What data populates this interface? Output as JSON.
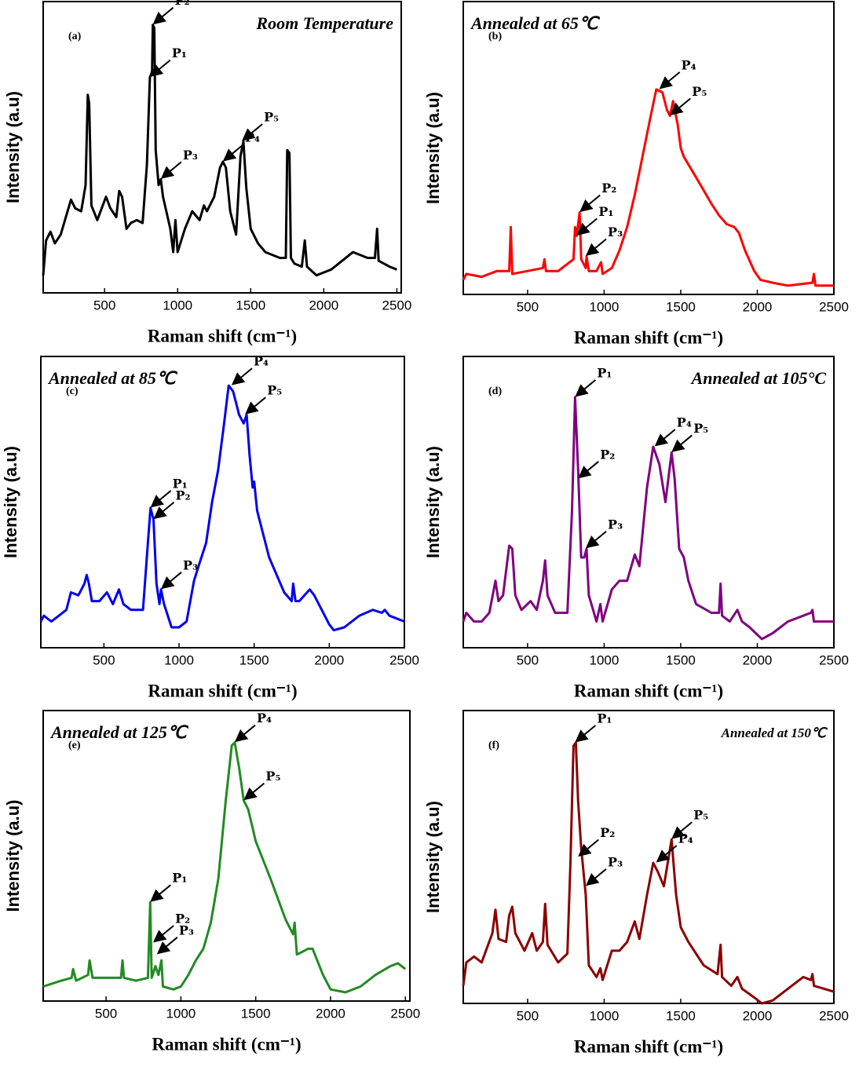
{
  "chart_data": [
    {
      "type": "line",
      "title": "Room Temperature",
      "panel_label": "(a)",
      "xlabel": "Raman shift (cm⁻¹)",
      "ylabel": "Intensity (a.u)",
      "xlim": [
        80,
        2530
      ],
      "ylim": [
        0,
        100
      ],
      "xticks": [
        500,
        1000,
        1500,
        2000,
        2500
      ],
      "x": [
        80,
        100,
        130,
        160,
        200,
        270,
        300,
        340,
        370,
        385,
        395,
        410,
        450,
        510,
        540,
        580,
        600,
        620,
        650,
        680,
        720,
        760,
        790,
        810,
        825,
        830,
        840,
        850,
        870,
        885,
        900,
        950,
        970,
        985,
        1000,
        1050,
        1100,
        1150,
        1180,
        1200,
        1250,
        1290,
        1310,
        1330,
        1360,
        1400,
        1430,
        1450,
        1470,
        1500,
        1550,
        1600,
        1700,
        1740,
        1750,
        1765,
        1775,
        1800,
        1850,
        1870,
        1885,
        1950,
        2000,
        2050,
        2100,
        2200,
        2300,
        2350,
        2365,
        2375,
        2450,
        2500
      ],
      "series": [
        {
          "color": "#000000",
          "values": [
            6,
            18,
            21,
            17,
            20,
            32,
            29,
            28,
            37,
            68,
            65,
            30,
            25,
            33,
            29,
            26,
            35,
            33,
            22,
            24,
            25,
            24,
            44,
            74,
            76,
            92,
            91,
            49,
            37,
            39,
            33,
            22,
            14,
            25,
            14,
            22,
            28,
            25,
            30,
            28,
            33,
            43,
            45,
            43,
            28,
            20,
            47,
            52,
            36,
            22,
            17,
            14,
            12,
            12,
            49,
            48,
            12,
            10,
            9,
            18,
            9,
            6,
            7,
            8,
            10,
            14,
            12,
            12,
            22,
            11,
            9,
            8
          ]
        }
      ],
      "annotations": [
        {
          "text": "P₁",
          "x": 810,
          "y": 74
        },
        {
          "text": "P₂",
          "x": 830,
          "y": 92
        },
        {
          "text": "P₃",
          "x": 885,
          "y": 39
        },
        {
          "text": "P₄",
          "x": 1310,
          "y": 45
        },
        {
          "text": "P₅",
          "x": 1440,
          "y": 52
        }
      ]
    },
    {
      "type": "line",
      "title": "Annealed at 65℃",
      "panel_label": "(b)",
      "xlabel": "Raman shift (cm⁻¹)",
      "ylabel": "Intensity (a.u)",
      "xlim": [
        80,
        2500
      ],
      "ylim": [
        0,
        100
      ],
      "xticks": [
        500,
        1000,
        1500,
        2000,
        2500
      ],
      "x": [
        80,
        100,
        200,
        300,
        380,
        390,
        400,
        500,
        600,
        610,
        620,
        700,
        800,
        810,
        820,
        830,
        840,
        850,
        880,
        885,
        900,
        950,
        980,
        990,
        1050,
        1100,
        1150,
        1200,
        1250,
        1300,
        1340,
        1380,
        1410,
        1430,
        1450,
        1480,
        1500,
        1520,
        1600,
        1700,
        1750,
        1800,
        1850,
        1880,
        1920,
        1980,
        2020,
        2100,
        2200,
        2360,
        2370,
        2380,
        2500
      ],
      "series": [
        {
          "color": "#ff0000",
          "values": [
            5,
            7,
            6,
            8,
            8,
            23,
            7,
            8,
            9,
            12,
            8,
            8,
            12,
            23,
            20,
            24,
            28,
            12,
            9,
            13,
            8,
            8,
            11,
            7,
            9,
            15,
            23,
            34,
            47,
            60,
            70,
            69,
            63,
            61,
            66,
            58,
            50,
            47,
            40,
            31,
            27,
            24,
            23,
            21,
            15,
            8,
            5,
            4,
            3,
            4,
            7,
            3,
            3
          ]
        }
      ],
      "annotations": [
        {
          "text": "P₁",
          "x": 820,
          "y": 20
        },
        {
          "text": "P₂",
          "x": 840,
          "y": 28
        },
        {
          "text": "P₃",
          "x": 880,
          "y": 13
        },
        {
          "text": "P₄",
          "x": 1360,
          "y": 70
        },
        {
          "text": "P₅",
          "x": 1430,
          "y": 61
        }
      ]
    },
    {
      "type": "line",
      "title": "Annealed at 85℃",
      "panel_label": "(c)",
      "xlabel": "Raman shift (cm⁻¹)",
      "ylabel": "Intensity (a.u)",
      "xlim": [
        80,
        2500
      ],
      "ylim": [
        0,
        100
      ],
      "xticks": [
        500,
        1000,
        1500,
        2000,
        2500
      ],
      "x": [
        80,
        100,
        150,
        250,
        280,
        330,
        370,
        385,
        400,
        420,
        470,
        520,
        560,
        600,
        630,
        680,
        760,
        790,
        810,
        830,
        850,
        870,
        880,
        900,
        950,
        1000,
        1050,
        1100,
        1130,
        1180,
        1220,
        1260,
        1300,
        1330,
        1360,
        1400,
        1430,
        1450,
        1470,
        1490,
        1500,
        1520,
        1600,
        1700,
        1750,
        1760,
        1775,
        1800,
        1870,
        1900,
        2000,
        2030,
        2100,
        2200,
        2290,
        2350,
        2370,
        2400,
        2500
      ],
      "series": [
        {
          "color": "#0000ee",
          "values": [
            9,
            11,
            9,
            13,
            19,
            18,
            22,
            25,
            22,
            16,
            16,
            19,
            15,
            20,
            15,
            13,
            13,
            34,
            48,
            44,
            22,
            15,
            20,
            15,
            7,
            7,
            9,
            23,
            28,
            36,
            50,
            61,
            77,
            90,
            88,
            80,
            77,
            80,
            66,
            55,
            57,
            47,
            31,
            19,
            16,
            22,
            16,
            16,
            20,
            18,
            8,
            6,
            7,
            11,
            13,
            12,
            13,
            11,
            9
          ]
        }
      ],
      "annotations": [
        {
          "text": "P₁",
          "x": 810,
          "y": 48
        },
        {
          "text": "P₂",
          "x": 830,
          "y": 44
        },
        {
          "text": "P₃",
          "x": 880,
          "y": 20
        },
        {
          "text": "P₄",
          "x": 1350,
          "y": 90
        },
        {
          "text": "P₅",
          "x": 1440,
          "y": 80
        }
      ]
    },
    {
      "type": "line",
      "title": "Annealed at 105°C",
      "panel_label": "(d)",
      "xlabel": "Raman shift (cm⁻¹)",
      "ylabel": "Intensity (a.u)",
      "xlim": [
        80,
        2500
      ],
      "ylim": [
        0,
        100
      ],
      "xticks": [
        500,
        1000,
        1500,
        2000,
        2500
      ],
      "x": [
        80,
        100,
        150,
        200,
        250,
        290,
        310,
        340,
        380,
        400,
        420,
        460,
        520,
        560,
        600,
        615,
        630,
        680,
        760,
        790,
        810,
        830,
        850,
        870,
        885,
        900,
        950,
        975,
        990,
        1050,
        1100,
        1150,
        1200,
        1230,
        1280,
        1320,
        1360,
        1400,
        1440,
        1460,
        1490,
        1520,
        1550,
        1600,
        1700,
        1750,
        1760,
        1770,
        1820,
        1870,
        1900,
        1950,
        2030,
        2100,
        2200,
        2300,
        2350,
        2360,
        2370,
        2500
      ],
      "series": [
        {
          "color": "#800080",
          "values": [
            9,
            12,
            9,
            9,
            12,
            23,
            16,
            18,
            35,
            34,
            18,
            13,
            16,
            13,
            23,
            30,
            18,
            12,
            12,
            47,
            86,
            61,
            31,
            31,
            34,
            18,
            9,
            15,
            9,
            20,
            23,
            23,
            32,
            28,
            55,
            69,
            63,
            50,
            67,
            58,
            34,
            31,
            23,
            15,
            12,
            12,
            22,
            11,
            9,
            13,
            9,
            7,
            3,
            5,
            9,
            11,
            12,
            13,
            9,
            9
          ]
        }
      ],
      "annotations": [
        {
          "text": "P₁",
          "x": 810,
          "y": 86
        },
        {
          "text": "P₂",
          "x": 830,
          "y": 58
        },
        {
          "text": "P₃",
          "x": 880,
          "y": 34
        },
        {
          "text": "P₄",
          "x": 1330,
          "y": 69
        },
        {
          "text": "P₅",
          "x": 1440,
          "y": 67
        }
      ]
    },
    {
      "type": "line",
      "title": "Annealed at 125℃",
      "panel_label": "(e)",
      "xlabel": "Raman shift (cm⁻¹)",
      "ylabel": "Intensity (a.u)",
      "xlim": [
        80,
        2530
      ],
      "ylim": [
        0,
        100
      ],
      "xticks": [
        500,
        1000,
        1500,
        2000,
        2500
      ],
      "x": [
        80,
        200,
        270,
        280,
        300,
        380,
        390,
        410,
        500,
        600,
        610,
        620,
        700,
        780,
        795,
        805,
        830,
        850,
        870,
        880,
        950,
        1000,
        1050,
        1100,
        1150,
        1200,
        1250,
        1300,
        1340,
        1360,
        1390,
        1420,
        1450,
        1500,
        1600,
        1700,
        1750,
        1760,
        1775,
        1850,
        1880,
        1950,
        2000,
        2100,
        2200,
        2300,
        2400,
        2450,
        2500
      ],
      "series": [
        {
          "color": "#228b22",
          "values": [
            5,
            7,
            8,
            11,
            7,
            9,
            14,
            8,
            8,
            8,
            14,
            8,
            7,
            8,
            34,
            8,
            12,
            9,
            14,
            5,
            4,
            5,
            9,
            14,
            18,
            27,
            42,
            69,
            88,
            89,
            80,
            69,
            66,
            55,
            42,
            28,
            23,
            27,
            16,
            18,
            18,
            9,
            4,
            3,
            5,
            9,
            12,
            13,
            11
          ]
        }
      ],
      "annotations": [
        {
          "text": "P₁",
          "x": 795,
          "y": 34
        },
        {
          "text": "P₂",
          "x": 815,
          "y": 20
        },
        {
          "text": "P₃",
          "x": 840,
          "y": 16
        },
        {
          "text": "P₄",
          "x": 1360,
          "y": 89
        },
        {
          "text": "P₅",
          "x": 1420,
          "y": 69
        }
      ]
    },
    {
      "type": "line",
      "title": "Annealed at 150℃",
      "panel_label": "(f)",
      "xlabel": "Raman shift (cm⁻¹)",
      "ylabel": "Intensity (a.u)",
      "xlim": [
        80,
        2500
      ],
      "ylim": [
        0,
        100
      ],
      "xticks": [
        500,
        1000,
        1500,
        2000,
        2500
      ],
      "x": [
        80,
        100,
        150,
        200,
        270,
        290,
        310,
        360,
        380,
        400,
        420,
        480,
        530,
        560,
        600,
        615,
        630,
        700,
        760,
        780,
        800,
        815,
        830,
        850,
        880,
        900,
        950,
        975,
        990,
        1050,
        1100,
        1150,
        1200,
        1230,
        1280,
        1320,
        1350,
        1390,
        1440,
        1470,
        1500,
        1550,
        1650,
        1740,
        1760,
        1770,
        1830,
        1870,
        1900,
        1980,
        2030,
        2100,
        2200,
        2300,
        2350,
        2360,
        2370,
        2500
      ],
      "series": [
        {
          "color": "#8b0000",
          "values": [
            6,
            14,
            16,
            14,
            24,
            32,
            22,
            21,
            30,
            33,
            24,
            18,
            24,
            18,
            21,
            34,
            20,
            14,
            17,
            48,
            88,
            89,
            69,
            53,
            37,
            13,
            9,
            12,
            8,
            18,
            18,
            21,
            28,
            22,
            37,
            48,
            45,
            40,
            56,
            37,
            26,
            21,
            13,
            10,
            20,
            9,
            6,
            9,
            5,
            2,
            0,
            1,
            5,
            9,
            8,
            10,
            6,
            4
          ]
        }
      ],
      "annotations": [
        {
          "text": "P₁",
          "x": 810,
          "y": 89
        },
        {
          "text": "P₂",
          "x": 830,
          "y": 50
        },
        {
          "text": "P₃",
          "x": 880,
          "y": 40
        },
        {
          "text": "P₄",
          "x": 1340,
          "y": 48
        },
        {
          "text": "P₅",
          "x": 1440,
          "y": 56
        }
      ]
    }
  ]
}
